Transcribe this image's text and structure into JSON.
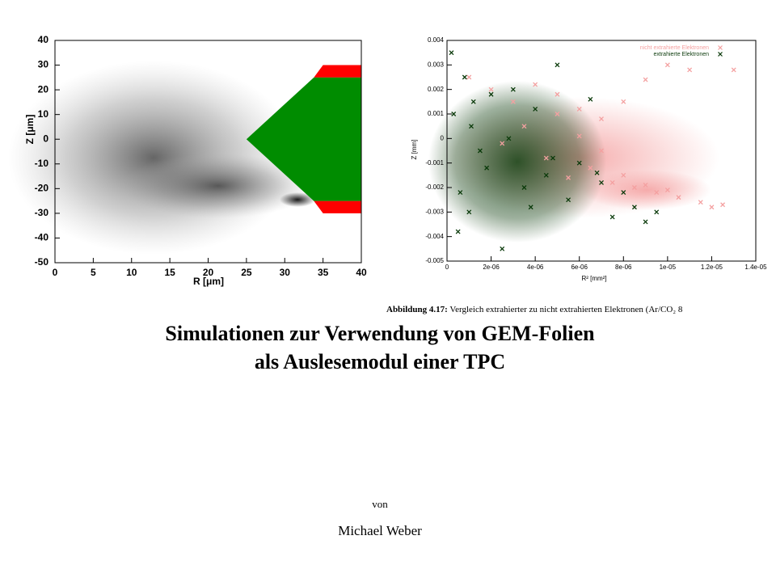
{
  "chart_data": [
    {
      "type": "region",
      "xlabel": "R [μm]",
      "ylabel": "Z [μm]",
      "xlim": [
        0,
        40
      ],
      "ylim": [
        -50,
        40
      ],
      "xticks": [
        0,
        5,
        10,
        15,
        20,
        25,
        30,
        35,
        40
      ],
      "yticks": [
        -50,
        -40,
        -30,
        -20,
        -10,
        0,
        10,
        20,
        30,
        40
      ],
      "regions": [
        {
          "color": "#ff0000",
          "points": [
            [
              35,
              30
            ],
            [
              40,
              30
            ],
            [
              40,
              25
            ],
            [
              33.8,
              25
            ]
          ]
        },
        {
          "color": "#ff0000",
          "points": [
            [
              33.8,
              -25
            ],
            [
              40,
              -25
            ],
            [
              40,
              -30
            ],
            [
              35,
              -30
            ]
          ]
        },
        {
          "color": "#008c00",
          "points": [
            [
              25,
              0
            ],
            [
              33.8,
              25
            ],
            [
              40,
              25
            ],
            [
              40,
              -25
            ],
            [
              33.8,
              -25
            ]
          ]
        }
      ]
    },
    {
      "type": "scatter",
      "xlabel": "R² [mm²]",
      "ylabel": "Z [mm]",
      "xlim": [
        0,
        1.4e-05
      ],
      "ylim": [
        -0.005,
        0.004
      ],
      "xticks": [
        0,
        {
          "value": 2e-06,
          "label": "2e-06"
        },
        {
          "value": 4e-06,
          "label": "4e-06"
        },
        {
          "value": 6e-06,
          "label": "6e-06"
        },
        {
          "value": 8e-06,
          "label": "8e-06"
        },
        {
          "value": 1e-05,
          "label": "1e-05"
        },
        {
          "value": 1.2e-05,
          "label": "1.2e-05"
        },
        {
          "value": 1.4e-05,
          "label": "1.4e-05"
        }
      ],
      "yticks": [
        -0.005,
        -0.004,
        -0.003,
        -0.002,
        -0.001,
        0,
        0.001,
        0.002,
        0.003,
        0.004
      ],
      "legend": "upper right",
      "series": [
        {
          "name": "nicht extrahierte Elektronen",
          "color": "#f4a0a0",
          "x": [
            1e-06,
            2e-06,
            3e-06,
            4e-06,
            5e-06,
            6e-06,
            7e-06,
            8e-06,
            9e-06,
            1e-05,
            1.1e-05,
            1.2e-05,
            5.5e-06,
            6.5e-06,
            7.5e-06,
            8.5e-06,
            9.5e-06,
            1.05e-05,
            1.15e-05,
            4.5e-06,
            3.5e-06,
            2.5e-06,
            8e-06,
            9e-06,
            1e-05,
            7e-06,
            6e-06,
            5e-06,
            1.25e-05,
            1.3e-05
          ],
          "values": [
            0.0025,
            0.002,
            0.0015,
            0.0022,
            0.0018,
            0.0012,
            0.0008,
            0.0015,
            0.0024,
            0.003,
            0.0028,
            -0.0028,
            -0.0016,
            -0.0012,
            -0.0018,
            -0.002,
            -0.0022,
            -0.0024,
            -0.0026,
            -0.0008,
            0.0005,
            -0.0002,
            -0.0015,
            -0.0019,
            -0.0021,
            -0.0005,
            0.0001,
            0.001,
            -0.0027,
            0.0028
          ]
        },
        {
          "name": "extrahierte Elektronen",
          "color": "#0a3a0a",
          "x": [
            2e-07,
            5e-07,
            8e-07,
            1e-06,
            1.2e-06,
            1.5e-06,
            2e-06,
            2.5e-06,
            3e-06,
            3.5e-06,
            4e-06,
            4.5e-06,
            5e-06,
            5.5e-06,
            6e-06,
            6.5e-06,
            7e-06,
            7.5e-06,
            8e-06,
            8.5e-06,
            9e-06,
            9.5e-06,
            3e-07,
            1.8e-06,
            2.8e-06,
            3.8e-06,
            4.8e-06,
            6e-07,
            1.1e-06,
            6.8e-06
          ],
          "values": [
            0.0035,
            -0.0038,
            0.0025,
            -0.003,
            0.0015,
            -0.0005,
            0.0018,
            -0.0045,
            0.002,
            -0.002,
            0.0012,
            -0.0015,
            0.003,
            -0.0025,
            -0.001,
            0.0016,
            -0.0018,
            -0.0032,
            -0.0022,
            -0.0028,
            -0.0034,
            -0.003,
            0.001,
            -0.0012,
            0,
            -0.0028,
            -0.0008,
            -0.0022,
            0.0005,
            -0.0014
          ]
        }
      ]
    }
  ],
  "caption_label": "Abbildung 4.17:",
  "caption_text": "Vergleich extrahierter zu nicht extrahierten Elektronen (Ar/CO₂ 8",
  "title": [
    "Simulationen zur Verwendung von GEM-Folien",
    "als Auslesemodul einer TPC"
  ],
  "by": "von",
  "author": "Michael Weber"
}
